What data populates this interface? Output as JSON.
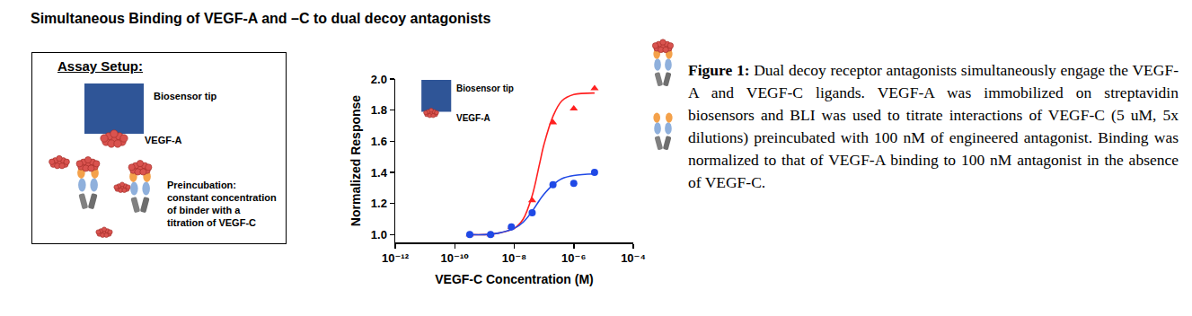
{
  "figure_title": "Simultaneous Binding of VEGF-A and –C to dual decoy antagonists",
  "assay_setup": {
    "heading": "Assay Setup:",
    "tip_label": "Biosensor tip",
    "ligand_label": "VEGF-A",
    "preincubation": [
      "Preincubation:",
      "constant concentration",
      "of binder with a",
      "titration of VEGF-C"
    ]
  },
  "chart_data": {
    "type": "scatter",
    "x_label": "VEGF-C Concentration (M)",
    "y_label": "Normalized Response",
    "log": "x",
    "grid": false,
    "xlim": [
      1e-12,
      0.0001
    ],
    "xticks": [
      {
        "value": 1e-12,
        "label": "10⁻¹²"
      },
      {
        "value": 1e-10,
        "label": "10⁻¹⁰"
      },
      {
        "value": 1e-08,
        "label": "10⁻⁸"
      },
      {
        "value": 1e-06,
        "label": "10⁻⁶"
      },
      {
        "value": 0.0001,
        "label": "10⁻⁴"
      }
    ],
    "ylim": [
      0.95,
      2.0
    ],
    "yticks": [
      {
        "value": 1,
        "label": "1.0"
      },
      1.2,
      1.4,
      1.6,
      1.8,
      {
        "value": 2,
        "label": "2.0"
      }
    ],
    "annotations": [
      "Biosensor tip",
      "VEGF-A"
    ],
    "series": [
      {
        "type": "line",
        "color": "#ff2020",
        "line_style": "solid",
        "x": [
          3.2e-10,
          1e-09,
          3e-09,
          1e-08,
          2e-08,
          4e-08,
          7e-08,
          1e-07,
          2e-07,
          4e-07,
          1e-06,
          5e-06
        ],
        "values": [
          1.0,
          1.0,
          1.01,
          1.04,
          1.1,
          1.25,
          1.45,
          1.58,
          1.76,
          1.86,
          1.9,
          1.91
        ]
      },
      {
        "type": "line",
        "color": "#1f49e6",
        "line_style": "solid",
        "x": [
          3.2e-10,
          1e-09,
          3e-09,
          1e-08,
          2e-08,
          4e-08,
          7e-08,
          1e-07,
          2e-07,
          4e-07,
          1e-06,
          5e-06
        ],
        "values": [
          1.0,
          1.0,
          1.01,
          1.04,
          1.08,
          1.15,
          1.22,
          1.26,
          1.32,
          1.36,
          1.38,
          1.39
        ]
      },
      {
        "type": "scatter",
        "color": "#ff2020",
        "marker": "triangle-up",
        "x": [
          3.2e-10,
          1.6e-09,
          8e-09,
          4e-08,
          2e-07,
          1e-06,
          5e-06
        ],
        "values": [
          1.0,
          1.0,
          1.05,
          1.22,
          1.72,
          1.81,
          1.94
        ]
      },
      {
        "type": "scatter",
        "color": "#1f49e6",
        "marker": "circle",
        "x": [
          3.2e-10,
          1.6e-09,
          8e-09,
          4e-08,
          2e-07,
          1e-06,
          5e-06
        ],
        "values": [
          1.0,
          1.0,
          1.05,
          1.14,
          1.32,
          1.33,
          1.4
        ]
      }
    ]
  },
  "caption": {
    "label": "Figure 1:",
    "text": "Dual decoy receptor antagonists simultaneously engage the VEGF-A and VEGF-C ligands. VEGF-A was immobilized on streptavidin biosensors and BLI was used to titrate interactions of VEGF-C (5 uM, 5x dilutions) preincubated with 100 nM of engineered antagonist. Binding was normalized to that of VEGF-A binding to 100 nM antagonist in the absence of VEGF-C."
  }
}
